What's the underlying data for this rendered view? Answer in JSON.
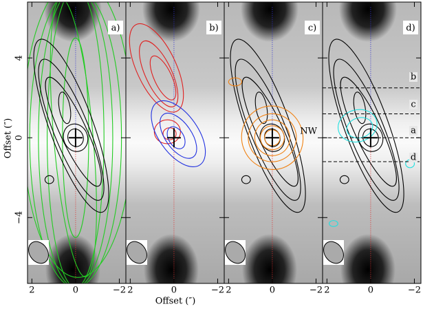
{
  "figure": {
    "panels": [
      {
        "label": "a)"
      },
      {
        "label": "b)"
      },
      {
        "label": "c)"
      },
      {
        "label": "d)"
      }
    ],
    "xlabel": "Offset (″)",
    "ylabel": "Offset (″)",
    "xlim": [
      2.2,
      -2.3
    ],
    "ylim": [
      -7.3,
      6.8
    ],
    "xticks": [
      2,
      0,
      {
        "value": -2,
        "label": "−2"
      }
    ],
    "yticks": [
      {
        "value": -4,
        "label": "−4"
      },
      0,
      4
    ],
    "source_label": "NW",
    "cut_labels": [
      "b",
      "c",
      "a",
      "d"
    ]
  }
}
